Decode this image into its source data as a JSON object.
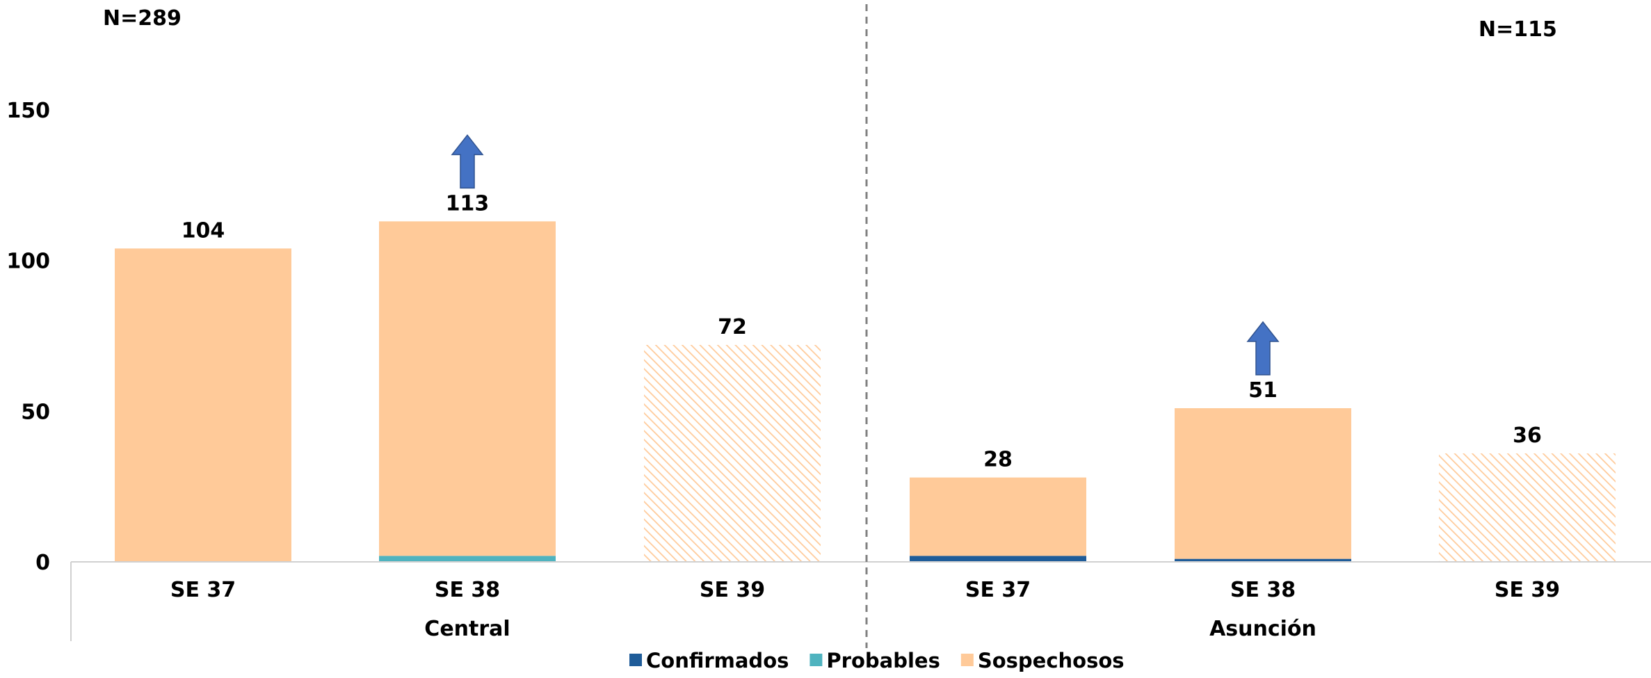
{
  "chart_data": {
    "type": "bar",
    "stacked": true,
    "groups": [
      {
        "name": "Central",
        "n_label": "N=289",
        "categories": [
          "SE 37",
          "SE 38",
          "SE 39"
        ],
        "totals": [
          104,
          113,
          72
        ],
        "series": [
          {
            "name": "Confirmados",
            "values": [
              0,
              0,
              0
            ]
          },
          {
            "name": "Probables",
            "values": [
              0,
              2,
              0
            ]
          },
          {
            "name": "Sospechosos",
            "values": [
              104,
              111,
              72
            ]
          }
        ],
        "hatched_category": "SE 39",
        "up_arrow_category": "SE 38"
      },
      {
        "name": "Asunción",
        "n_label": "N=115",
        "categories": [
          "SE 37",
          "SE 38",
          "SE 39"
        ],
        "totals": [
          28,
          51,
          36
        ],
        "series": [
          {
            "name": "Confirmados",
            "values": [
              2,
              1,
              0
            ]
          },
          {
            "name": "Probables",
            "values": [
              0,
              0,
              0
            ]
          },
          {
            "name": "Sospechosos",
            "values": [
              26,
              50,
              36
            ]
          }
        ],
        "hatched_category": "SE 39",
        "up_arrow_category": "SE 38"
      }
    ],
    "y_ticks": [
      "0",
      "50",
      "100",
      "150"
    ],
    "ylim": [
      0,
      150
    ],
    "legend": [
      "Confirmados",
      "Probables",
      "Sospechosos"
    ],
    "legend_position": "bottom",
    "grid": false,
    "colors": {
      "Confirmados": "#1F5C99",
      "Probables": "#4FB3BF",
      "Sospechosos": "#FFCA99",
      "arrow": "#4472C4",
      "divider": "#808080",
      "axis": "#d0d0d0"
    }
  }
}
